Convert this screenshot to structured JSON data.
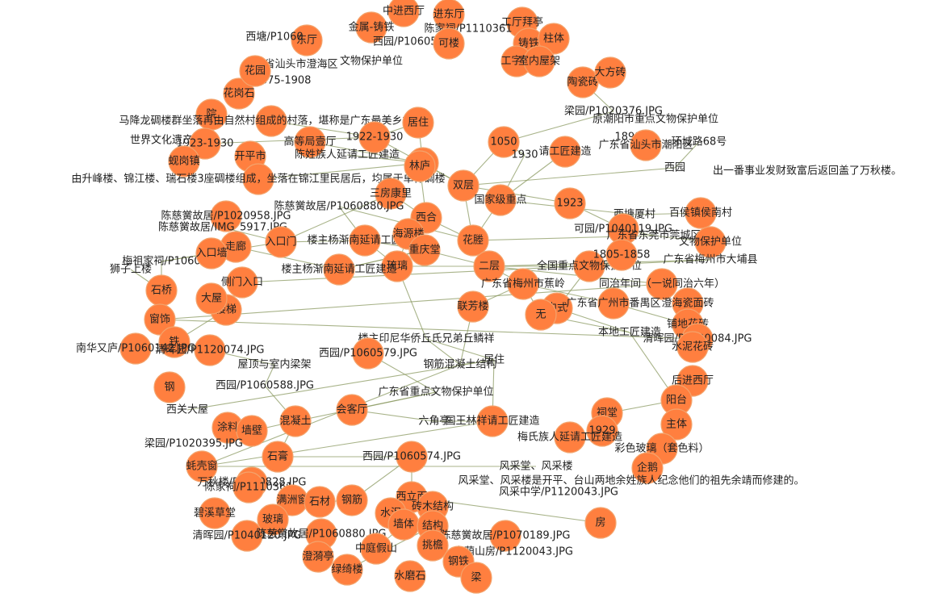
{
  "graph": {
    "node_color": "#ff7f3f",
    "edge_color": "#8b9a62",
    "nodes": [
      "中进西厅",
      "进东厅",
      "工厅拜亭",
      "金属-铸铁",
      "陈家祠/P1110361",
      "铸铁",
      "柱体",
      "东厅",
      "西园/P1060581",
      "可楼",
      "工字钢",
      "室内屋架",
      "西塘/P1060",
      "广东省汕头市澄海区",
      "文物保护单位",
      "花岗石",
      "1875-1908",
      "陶瓷砖",
      "大方砖",
      "花园",
      "梁园/P1020376.JPG",
      "原潮阳市重点文物保护单位",
      "院",
      "马降龙碉楼群坐落再由自然村组成的村落，堪称是广东最美乡村。",
      "居住",
      "1898",
      "世界文化遗产",
      "1923-1930",
      "高等局壹厅",
      "广东省汕头市潮阳区",
      "环城路68号",
      "蚬岗镇",
      "开平市",
      "陈姓族人延请工匠建造",
      "1922-1930",
      "林庐",
      "1050",
      "1930",
      "请工匠建造",
      "西园",
      "出一番事业发财致富后返回盖了万秋楼。",
      "由升峰楼、锦江楼、瑞石楼3座碉楼组成，坐落在锦江里民居后，均属于单体碉楼",
      "三房康里",
      "双层",
      "国家级重点",
      "陈慈黉故居/P1060880.JPG",
      "西合",
      "1923",
      "西塘厦村",
      "百侯镇侯南村",
      "陈慈黉故居/P1020958.JPG",
      "林庐",
      "陈慈黉故居/IMG_5917.JPG",
      "入口门",
      "楼主杨渐南延请工匠建造",
      "海源楼",
      "花塍",
      "琉璃",
      "可园/P1040119.JPG",
      "广东省东莞市莞城区",
      "文物保护单位",
      "重庆堂",
      "梅祖家祠/P1060",
      "走廊",
      "入口墙",
      "二层",
      "全国重点文物保护单位",
      "1805-1858",
      "广东省梅州市大埔县",
      "狮子上楼",
      "楼主杨渐南延请工匠建造",
      "广东省梅州市蕉岭",
      "同治年间（一说同治六年）",
      "侧门入口",
      "石桥",
      "楼梯",
      "联芳楼",
      "中式",
      "大屋",
      "窗饰",
      "无",
      "广东省广州市番禺区",
      "澄海瓷面砖",
      "铺地花砖",
      "本地工匠建造",
      "清晖园/P1120084.JPG",
      "铁",
      "南华又庐/P1060142.JPG",
      "清晖园/P1120074.JPG",
      "楼主印尼华侨丘氏兄弟丘鳞祥",
      "西园/P1060579.JPG",
      "钢筋混凝土结构",
      "居住",
      "水泥花砖",
      "广东省重点文物保护单位",
      "后进西厅",
      "屋顶与室内梁架",
      "钢",
      "西园/P1060588.JPG",
      "阳台",
      "祠堂",
      "西关大屋",
      "涂料",
      "墙壁",
      "混凝土",
      "会客厅",
      "六角亭",
      "国王林祥请工匠建造",
      "1929",
      "主体",
      "梁园/P1020395.JPG",
      "石膏",
      "梅氏族人延请工匠建造",
      "彩色玻璃（套色料）",
      "蚝壳窗",
      "西园/P1060574.JPG",
      "风采堂、风采楼",
      "企鹅",
      "万秋楼/P1050828.JPG",
      "陈家祠/P1110361",
      "风采堂、风采楼是开平、台山两地余姓族人纪念他们的祖先余靖而修建的。",
      "碧溪草堂",
      "满洲窗",
      "石材",
      "钢筋",
      "西立面",
      "风采中学/P1120043.JPG",
      "房",
      "玻璃",
      "砖木结构",
      "水泥",
      "清晖园/P1040120.JPG",
      "陈慈黉故居/P1060880.JPG",
      "墙体",
      "结构",
      "陈慈黉故居/P1070189.JPG",
      "澄漪亭",
      "中庭假山",
      "挑檐",
      "余荫山房/P1120043.JPG",
      "钢铁",
      "绿绮楼",
      "水磨石",
      "梁"
    ]
  }
}
